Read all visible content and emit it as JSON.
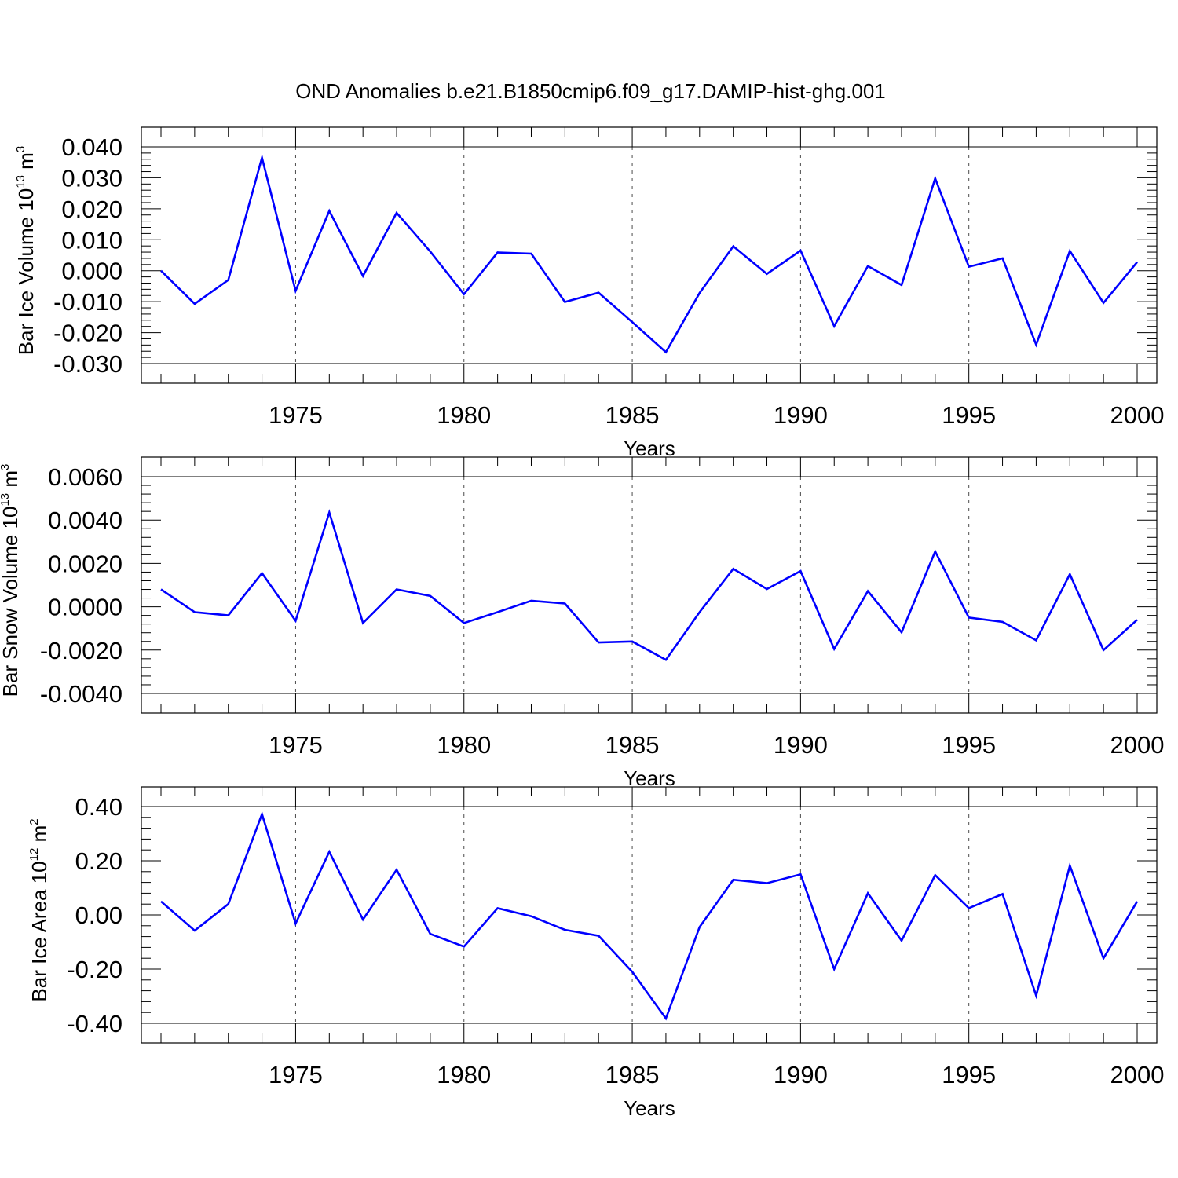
{
  "figure": {
    "title": "OND Anomalies b.e21.B1850cmip6.f09_g17.DAMIP-hist-ghg.001"
  },
  "colors": {
    "line": "#0000ff",
    "axes": "#000000",
    "grid": "#000000"
  },
  "chart_data": [
    {
      "type": "line",
      "title": "",
      "ylabel": {
        "text": "Bar Ice Volume 10",
        "sup": "13",
        "unit": " m",
        "unit_sup": "3"
      },
      "xlabel": "Years",
      "xlim": [
        1971,
        2000
      ],
      "ylim": [
        -0.03,
        0.04
      ],
      "x_ticks": [
        1975,
        1980,
        1985,
        1990,
        1995,
        2000
      ],
      "x_tick_labels": [
        "1975",
        "1980",
        "1985",
        "1990",
        "1995",
        "2000"
      ],
      "y_ticks": [
        -0.03,
        -0.02,
        -0.01,
        0.0,
        0.01,
        0.02,
        0.03,
        0.04
      ],
      "y_tick_labels": [
        "-0.030",
        "-0.020",
        "-0.010",
        "0.000",
        "0.010",
        "0.020",
        "0.030",
        "0.040"
      ],
      "vertical_grid": "dashed at major x ticks",
      "series": [
        {
          "x": [
            1971,
            1972,
            1973,
            1974,
            1975,
            1976,
            1977,
            1978,
            1979,
            1980,
            1981,
            1982,
            1983,
            1984,
            1985,
            1986,
            1987,
            1988,
            1989,
            1990,
            1991,
            1992,
            1993,
            1994,
            1995,
            1996,
            1997,
            1998,
            1999,
            2000
          ],
          "values": [
            0.0,
            -0.0107,
            -0.003,
            0.0365,
            -0.0065,
            0.0193,
            -0.0017,
            0.0187,
            0.0062,
            -0.0076,
            0.0059,
            0.0055,
            -0.0101,
            -0.0071,
            -0.0166,
            -0.0263,
            -0.0072,
            0.0079,
            -0.001,
            0.0065,
            -0.0179,
            0.0015,
            -0.0046,
            0.0298,
            0.0013,
            0.004,
            -0.0239,
            0.0064,
            -0.0104,
            0.0028
          ]
        }
      ]
    },
    {
      "type": "line",
      "title": "",
      "ylabel": {
        "text": "Bar Snow Volume 10",
        "sup": "13",
        "unit": " m",
        "unit_sup": "3"
      },
      "xlabel": "Years",
      "xlim": [
        1971,
        2000
      ],
      "ylim": [
        -0.004,
        0.006
      ],
      "x_ticks": [
        1975,
        1980,
        1985,
        1990,
        1995,
        2000
      ],
      "x_tick_labels": [
        "1975",
        "1980",
        "1985",
        "1990",
        "1995",
        "2000"
      ],
      "y_ticks": [
        -0.004,
        -0.002,
        0.0,
        0.002,
        0.004,
        0.006
      ],
      "y_tick_labels": [
        "-0.0040",
        "-0.0020",
        "0.0000",
        "0.0020",
        "0.0040",
        "0.0060"
      ],
      "vertical_grid": "dashed at major x ticks",
      "series": [
        {
          "x": [
            1971,
            1972,
            1973,
            1974,
            1975,
            1976,
            1977,
            1978,
            1979,
            1980,
            1981,
            1982,
            1983,
            1984,
            1985,
            1986,
            1987,
            1988,
            1989,
            1990,
            1991,
            1992,
            1993,
            1994,
            1995,
            1996,
            1997,
            1998,
            1999,
            2000
          ],
          "values": [
            0.0008,
            -0.00025,
            -0.0004,
            0.00155,
            -0.00065,
            0.00435,
            -0.00075,
            0.0008,
            0.0005,
            -0.00075,
            -0.00025,
            0.00028,
            0.00015,
            -0.00165,
            -0.0016,
            -0.00245,
            -0.00025,
            0.00175,
            0.00082,
            0.00165,
            -0.00195,
            0.00072,
            -0.00118,
            0.00255,
            -0.0005,
            -0.0007,
            -0.00155,
            0.0015,
            -0.002,
            -0.0006
          ]
        }
      ]
    },
    {
      "type": "line",
      "title": "",
      "ylabel": {
        "text": "Bar Ice Area 10",
        "sup": "12",
        "unit": " m",
        "unit_sup": "2"
      },
      "xlabel": "Years",
      "xlim": [
        1971,
        2000
      ],
      "ylim": [
        -0.4,
        0.4
      ],
      "x_ticks": [
        1975,
        1980,
        1985,
        1990,
        1995,
        2000
      ],
      "x_tick_labels": [
        "1975",
        "1980",
        "1985",
        "1990",
        "1995",
        "2000"
      ],
      "y_ticks": [
        -0.4,
        -0.2,
        0.0,
        0.2,
        0.4
      ],
      "y_tick_labels": [
        "-0.40",
        "-0.20",
        "0.00",
        "0.20",
        "0.40"
      ],
      "vertical_grid": "dashed at major x ticks",
      "series": [
        {
          "x": [
            1971,
            1972,
            1973,
            1974,
            1975,
            1976,
            1977,
            1978,
            1979,
            1980,
            1981,
            1982,
            1983,
            1984,
            1985,
            1986,
            1987,
            1988,
            1989,
            1990,
            1991,
            1992,
            1993,
            1994,
            1995,
            1996,
            1997,
            1998,
            1999,
            2000
          ],
          "values": [
            0.05,
            -0.058,
            0.04,
            0.372,
            -0.032,
            0.233,
            -0.017,
            0.167,
            -0.07,
            -0.117,
            0.025,
            -0.005,
            -0.055,
            -0.077,
            -0.21,
            -0.382,
            -0.045,
            0.13,
            0.117,
            0.15,
            -0.2,
            0.08,
            -0.095,
            0.147,
            0.025,
            0.077,
            -0.298,
            0.182,
            -0.16,
            0.05
          ]
        }
      ]
    }
  ]
}
